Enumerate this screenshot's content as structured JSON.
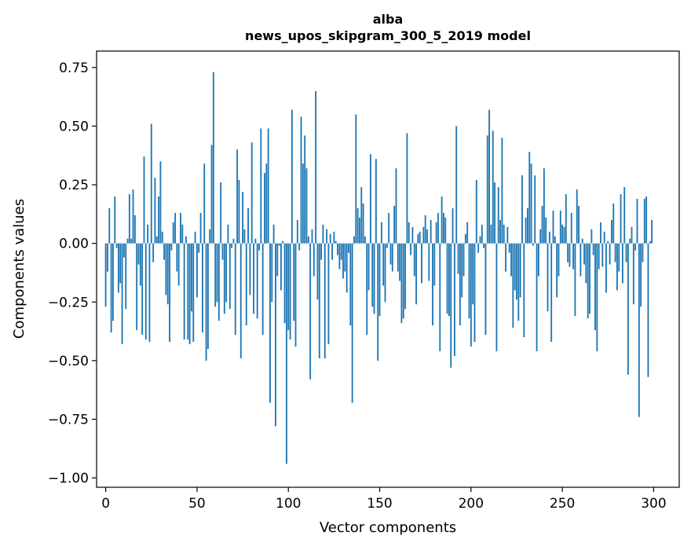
{
  "chart_data": {
    "type": "bar",
    "title_line1": "alba",
    "title_line2": "news_upos_skipgram_300_5_2019 model",
    "xlabel": "Vector components",
    "ylabel": "Components values",
    "xlim": [
      -5,
      314
    ],
    "ylim": [
      -1.04,
      0.82
    ],
    "xticks": [
      {
        "value": 0,
        "label": "0"
      },
      {
        "value": 50,
        "label": "50"
      },
      {
        "value": 100,
        "label": "100"
      },
      {
        "value": 150,
        "label": "150"
      },
      {
        "value": 200,
        "label": "200"
      },
      {
        "value": 250,
        "label": "250"
      },
      {
        "value": 300,
        "label": "300"
      }
    ],
    "yticks": [
      {
        "value": 0.75,
        "label": "0.75"
      },
      {
        "value": 0.5,
        "label": "0.50"
      },
      {
        "value": 0.25,
        "label": "0.25"
      },
      {
        "value": 0.0,
        "label": "0.00"
      },
      {
        "value": -0.25,
        "label": "−0.25"
      },
      {
        "value": -0.5,
        "label": "−0.50"
      },
      {
        "value": -0.75,
        "label": "−0.75"
      },
      {
        "value": -1.0,
        "label": "−1.00"
      }
    ],
    "bar_color": "#1f77b4",
    "x": "indices 0..299",
    "values": [
      -0.27,
      -0.12,
      0.15,
      -0.38,
      -0.33,
      0.2,
      -0.02,
      -0.21,
      -0.17,
      -0.43,
      -0.06,
      -0.28,
      0.02,
      0.21,
      0.02,
      0.23,
      0.12,
      -0.37,
      -0.09,
      -0.18,
      -0.39,
      0.37,
      -0.41,
      0.08,
      -0.42,
      0.51,
      -0.08,
      0.28,
      0.03,
      0.2,
      0.35,
      0.05,
      -0.07,
      -0.22,
      -0.26,
      -0.42,
      -0.03,
      0.09,
      0.13,
      -0.12,
      -0.18,
      0.13,
      0.08,
      -0.41,
      0.03,
      -0.41,
      -0.43,
      -0.29,
      -0.42,
      0.05,
      -0.23,
      -0.04,
      0.13,
      -0.38,
      0.34,
      -0.5,
      -0.45,
      0.06,
      0.42,
      0.73,
      -0.27,
      -0.25,
      -0.33,
      0.26,
      -0.07,
      -0.3,
      -0.25,
      0.08,
      -0.28,
      -0.02,
      0.02,
      -0.39,
      0.4,
      0.27,
      -0.49,
      0.22,
      0.06,
      -0.35,
      0.15,
      -0.22,
      0.43,
      -0.3,
      0.02,
      -0.32,
      -0.03,
      0.49,
      -0.39,
      0.3,
      0.34,
      0.49,
      -0.68,
      -0.25,
      0.08,
      -0.78,
      -0.14,
      -0.01,
      -0.2,
      0.01,
      -0.34,
      -0.94,
      -0.37,
      -0.41,
      0.57,
      -0.33,
      -0.44,
      0.1,
      -0.03,
      0.54,
      0.34,
      0.46,
      0.32,
      0.03,
      -0.58,
      0.06,
      -0.14,
      0.65,
      -0.24,
      -0.49,
      -0.07,
      0.08,
      -0.49,
      0.06,
      -0.43,
      0.04,
      -0.07,
      0.05,
      0.01,
      -0.05,
      -0.11,
      -0.07,
      -0.15,
      -0.12,
      -0.21,
      -0.04,
      -0.35,
      -0.68,
      0.03,
      0.55,
      0.15,
      0.11,
      0.24,
      0.17,
      0.03,
      -0.39,
      -0.2,
      0.38,
      -0.27,
      -0.3,
      0.36,
      -0.5,
      -0.31,
      0.09,
      -0.18,
      -0.25,
      -0.02,
      0.13,
      -0.09,
      -0.12,
      0.16,
      0.32,
      -0.12,
      -0.16,
      -0.34,
      -0.32,
      -0.28,
      0.47,
      0.09,
      -0.05,
      0.07,
      -0.14,
      -0.26,
      0.04,
      0.05,
      -0.17,
      0.07,
      0.12,
      0.06,
      -0.16,
      0.1,
      -0.35,
      -0.18,
      0.09,
      0.13,
      -0.46,
      0.2,
      0.13,
      0.11,
      -0.3,
      -0.31,
      -0.53,
      0.15,
      -0.48,
      0.5,
      -0.13,
      -0.35,
      -0.23,
      -0.14,
      0.04,
      0.09,
      -0.32,
      -0.44,
      -0.26,
      -0.42,
      0.27,
      -0.04,
      0.03,
      0.08,
      -0.02,
      -0.39,
      0.46,
      0.57,
      0.08,
      0.48,
      0.26,
      -0.46,
      0.24,
      0.1,
      0.45,
      0.08,
      -0.12,
      0.07,
      -0.04,
      -0.14,
      -0.36,
      -0.2,
      -0.24,
      -0.33,
      -0.23,
      0.29,
      -0.4,
      0.11,
      0.15,
      0.39,
      0.34,
      -0.01,
      0.29,
      -0.46,
      -0.14,
      0.06,
      0.16,
      0.32,
      0.11,
      -0.29,
      0.05,
      -0.42,
      0.14,
      0.03,
      -0.23,
      -0.14,
      0.14,
      0.08,
      0.07,
      0.21,
      -0.08,
      -0.1,
      0.13,
      -0.11,
      -0.31,
      0.23,
      0.16,
      -0.14,
      0.02,
      -0.09,
      -0.17,
      -0.32,
      -0.3,
      0.06,
      -0.05,
      -0.37,
      -0.46,
      -0.11,
      0.09,
      -0.1,
      0.05,
      -0.21,
      0.01,
      -0.09,
      0.1,
      0.17,
      -0.08,
      -0.2,
      -0.12,
      0.21,
      -0.17,
      0.24,
      -0.08,
      -0.56,
      0.02,
      0.07,
      -0.26,
      -0.03,
      0.19,
      -0.74,
      -0.27,
      -0.08,
      0.19,
      0.2,
      -0.57,
      0.01,
      0.1
    ]
  }
}
